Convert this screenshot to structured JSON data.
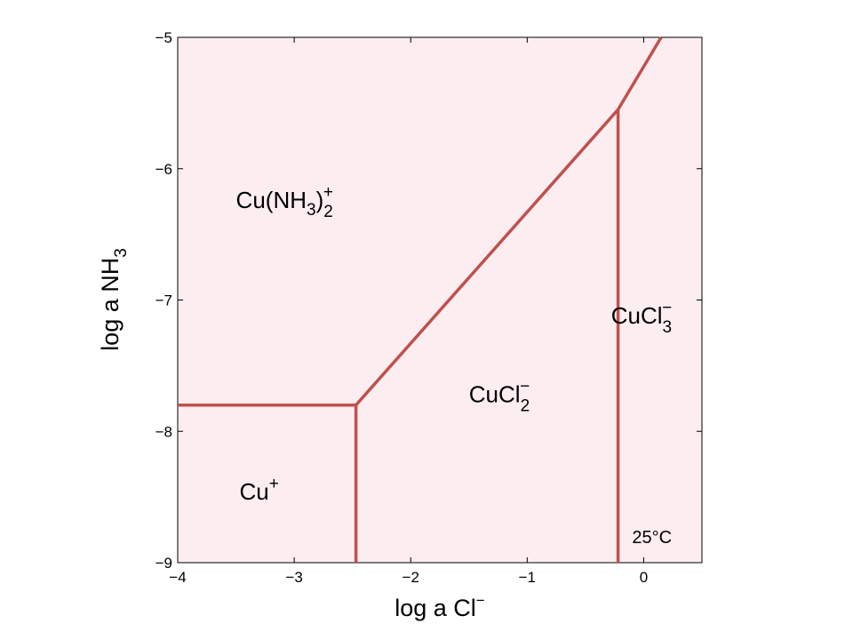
{
  "chart_data": {
    "type": "line",
    "xlabel": "log a Cl",
    "xlabel_sup": "−",
    "ylabel": "log a NH",
    "ylabel_sub": "3",
    "xlim": [
      -4,
      0.5
    ],
    "ylim": [
      -9,
      -5
    ],
    "x_ticks": [
      {
        "value": -4,
        "label": "−4"
      },
      {
        "value": -3,
        "label": "−3"
      },
      {
        "value": -2,
        "label": "−2"
      },
      {
        "value": -1,
        "label": "−1"
      },
      {
        "value": 0,
        "label": "0"
      }
    ],
    "y_ticks": [
      {
        "value": -5,
        "label": "−5"
      },
      {
        "value": -6,
        "label": "−6"
      },
      {
        "value": -7,
        "label": "−7"
      },
      {
        "value": -8,
        "label": "−8"
      },
      {
        "value": -9,
        "label": "−9"
      }
    ],
    "grid": false,
    "background_color": "#fcedf0",
    "line_color": "#c0504d",
    "boundaries": [
      {
        "id": "cu-ammine-boundary",
        "points": [
          [
            -4,
            -7.8
          ],
          [
            -2.47,
            -7.8
          ]
        ]
      },
      {
        "id": "cu-cucl2-boundary",
        "points": [
          [
            -2.47,
            -7.8
          ],
          [
            -2.47,
            -9
          ]
        ]
      },
      {
        "id": "ammine-cucl2-boundary",
        "points": [
          [
            -2.47,
            -7.8
          ],
          [
            -0.22,
            -5.55
          ]
        ]
      },
      {
        "id": "cucl2-cucl3-boundary",
        "points": [
          [
            -0.22,
            -5.55
          ],
          [
            -0.22,
            -9
          ]
        ]
      },
      {
        "id": "ammine-cucl3-boundary",
        "points": [
          [
            -0.22,
            -5.55
          ],
          [
            0.15,
            -5.0
          ]
        ]
      }
    ],
    "fields": [
      {
        "id": "cu-ammine",
        "base": "Cu(NH",
        "sub1": "3",
        "mid": ")",
        "sub2": "2",
        "sup": "+",
        "x": -3.5,
        "y": -6.3
      },
      {
        "id": "cu-plus",
        "base": "Cu",
        "sub1": "",
        "mid": "",
        "sub2": "",
        "sup": "+",
        "x": -3.47,
        "y": -8.52
      },
      {
        "id": "cucl2",
        "base": "CuCl",
        "sub1": "",
        "mid": "",
        "sub2": "2",
        "sup": "−",
        "x": -1.5,
        "y": -7.78
      },
      {
        "id": "cucl3",
        "base": "CuCl",
        "sub1": "",
        "mid": "",
        "sub2": "3",
        "sup": "−",
        "x": -0.28,
        "y": -7.18
      }
    ],
    "annotation": {
      "text": "25°C",
      "x": -0.1,
      "y": -8.85
    }
  }
}
